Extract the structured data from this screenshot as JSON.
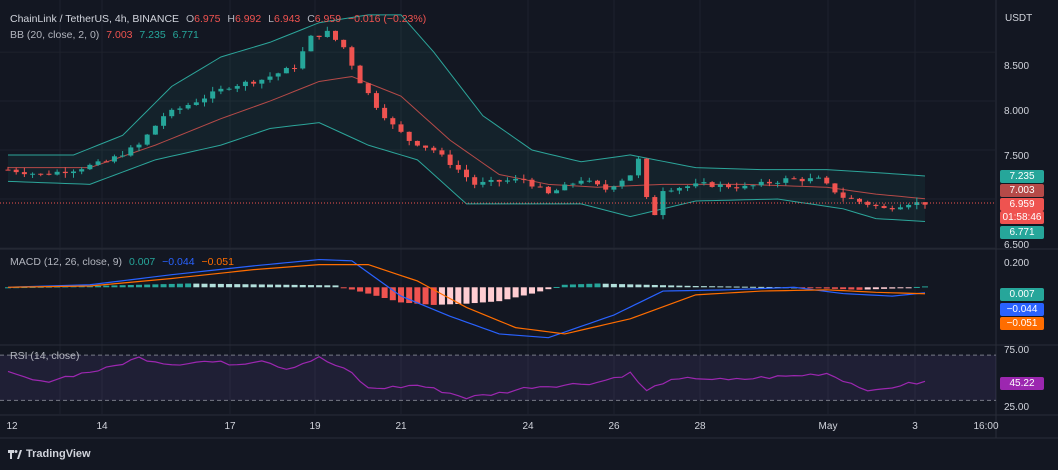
{
  "header": {
    "symbol": "ChainLink / TetherUS, 4h, BINANCE",
    "o_label": "O",
    "o": "6.975",
    "h_label": "H",
    "h": "6.992",
    "l_label": "L",
    "l": "6.943",
    "c_label": "C",
    "c": "6.959",
    "change": "−0.016 (−0.23%)",
    "bb_label": "BB (20, close, 2, 0)",
    "bb_basis": "7.003",
    "bb_upper": "7.235",
    "bb_lower": "6.771",
    "macd_label": "MACD (12, 26, close, 9)",
    "macd_hist": "0.007",
    "macd_line": "−0.044",
    "macd_signal": "−0.051",
    "rsi_label": "RSI (14, close)"
  },
  "axis": {
    "currency": "USDT",
    "price_ticks": [
      "8.500",
      "8.000",
      "7.500",
      "6.500"
    ],
    "macd_ticks": [
      "0.200"
    ],
    "rsi_ticks": [
      "75.00",
      "25.00"
    ],
    "x_ticks": [
      "12",
      "14",
      "17",
      "19",
      "21",
      "24",
      "26",
      "28",
      "May",
      "3",
      "16:00"
    ]
  },
  "pills": {
    "bb_upper": "7.235",
    "bb_basis": "7.003",
    "last_price": "6.959",
    "countdown": "01:58:46",
    "bb_lower": "6.771",
    "macd_hist": "0.007",
    "macd_line": "−0.044",
    "macd_signal": "−0.051",
    "rsi": "45.22"
  },
  "footer": {
    "brand": "TradingView"
  },
  "colors": {
    "up": "#26a69a",
    "down": "#ef5350",
    "bb_band": "#2ca59a",
    "bb_basis": "#b54a48",
    "macd_line": "#2962ff",
    "signal_line": "#ff6d00",
    "rsi": "#9c27b0",
    "bg": "#131722"
  },
  "chart_data": [
    {
      "type": "candlestick",
      "title": "ChainLink / TetherUS, 4h, BINANCE",
      "ylim": [
        6.5,
        8.95
      ],
      "price_points": [
        [
          0,
          7.3
        ],
        [
          4,
          7.25
        ],
        [
          8,
          7.3
        ],
        [
          12,
          7.38
        ],
        [
          16,
          7.55
        ],
        [
          19,
          7.85
        ],
        [
          23,
          8.0
        ],
        [
          27,
          8.15
        ],
        [
          31,
          8.22
        ],
        [
          35,
          8.35
        ],
        [
          37,
          8.65
        ],
        [
          39,
          8.7
        ],
        [
          41,
          8.55
        ],
        [
          43,
          8.2
        ],
        [
          45,
          7.95
        ],
        [
          47,
          7.75
        ],
        [
          49,
          7.6
        ],
        [
          52,
          7.5
        ],
        [
          55,
          7.3
        ],
        [
          57,
          7.15
        ],
        [
          60,
          7.18
        ],
        [
          63,
          7.2
        ],
        [
          66,
          7.05
        ],
        [
          70,
          7.2
        ],
        [
          73,
          7.1
        ],
        [
          76,
          7.25
        ],
        [
          77,
          7.4
        ],
        [
          78,
          7.0
        ],
        [
          79,
          6.85
        ],
        [
          80,
          7.1
        ],
        [
          85,
          7.15
        ],
        [
          90,
          7.12
        ],
        [
          95,
          7.2
        ],
        [
          99,
          7.2
        ],
        [
          102,
          7.02
        ],
        [
          105,
          6.95
        ],
        [
          107,
          6.9
        ],
        [
          110,
          6.96
        ],
        [
          112,
          6.959
        ]
      ],
      "bb_upper_points": [
        [
          0,
          7.45
        ],
        [
          8,
          7.45
        ],
        [
          14,
          7.65
        ],
        [
          20,
          8.15
        ],
        [
          26,
          8.45
        ],
        [
          32,
          8.6
        ],
        [
          38,
          8.8
        ],
        [
          44,
          8.88
        ],
        [
          48,
          8.88
        ],
        [
          52,
          8.5
        ],
        [
          58,
          7.85
        ],
        [
          64,
          7.5
        ],
        [
          70,
          7.38
        ],
        [
          76,
          7.45
        ],
        [
          84,
          7.32
        ],
        [
          92,
          7.3
        ],
        [
          100,
          7.3
        ],
        [
          106,
          7.27
        ],
        [
          112,
          7.235
        ]
      ],
      "bb_basis_points": [
        [
          0,
          7.32
        ],
        [
          10,
          7.32
        ],
        [
          18,
          7.55
        ],
        [
          26,
          7.82
        ],
        [
          32,
          8.0
        ],
        [
          38,
          8.2
        ],
        [
          42,
          8.25
        ],
        [
          48,
          8.05
        ],
        [
          54,
          7.6
        ],
        [
          60,
          7.25
        ],
        [
          66,
          7.15
        ],
        [
          72,
          7.12
        ],
        [
          80,
          7.15
        ],
        [
          90,
          7.15
        ],
        [
          100,
          7.12
        ],
        [
          106,
          7.05
        ],
        [
          112,
          7.003
        ]
      ],
      "bb_lower_points": [
        [
          0,
          7.18
        ],
        [
          10,
          7.15
        ],
        [
          18,
          7.4
        ],
        [
          26,
          7.55
        ],
        [
          32,
          7.72
        ],
        [
          38,
          7.78
        ],
        [
          44,
          7.55
        ],
        [
          50,
          7.4
        ],
        [
          56,
          6.95
        ],
        [
          62,
          6.95
        ],
        [
          70,
          6.95
        ],
        [
          76,
          6.82
        ],
        [
          84,
          6.98
        ],
        [
          94,
          7.0
        ],
        [
          102,
          6.9
        ],
        [
          106,
          6.8
        ],
        [
          112,
          6.771
        ]
      ],
      "last_price": 6.959
    },
    {
      "type": "bar",
      "title": "MACD (12, 26, close, 9)",
      "ylim": [
        -0.45,
        0.28
      ],
      "hist_points": [
        [
          0,
          0.0
        ],
        [
          10,
          0.01
        ],
        [
          16,
          0.02
        ],
        [
          22,
          0.03
        ],
        [
          28,
          0.025
        ],
        [
          34,
          0.02
        ],
        [
          40,
          0.015
        ],
        [
          44,
          -0.05
        ],
        [
          48,
          -0.12
        ],
        [
          52,
          -0.14
        ],
        [
          56,
          -0.13
        ],
        [
          60,
          -0.11
        ],
        [
          64,
          -0.05
        ],
        [
          68,
          0.02
        ],
        [
          72,
          0.03
        ],
        [
          78,
          0.02
        ],
        [
          84,
          0.01
        ],
        [
          90,
          0.005
        ],
        [
          96,
          0.0
        ],
        [
          100,
          -0.01
        ],
        [
          104,
          -0.02
        ],
        [
          108,
          -0.01
        ],
        [
          112,
          0.007
        ]
      ],
      "macd_line_points": [
        [
          0,
          0.0
        ],
        [
          10,
          0.02
        ],
        [
          20,
          0.1
        ],
        [
          30,
          0.17
        ],
        [
          38,
          0.22
        ],
        [
          42,
          0.21
        ],
        [
          48,
          -0.07
        ],
        [
          54,
          -0.23
        ],
        [
          60,
          -0.37
        ],
        [
          66,
          -0.4
        ],
        [
          74,
          -0.22
        ],
        [
          80,
          -0.03
        ],
        [
          88,
          -0.02
        ],
        [
          96,
          0.0
        ],
        [
          102,
          -0.05
        ],
        [
          108,
          -0.07
        ],
        [
          112,
          -0.044
        ]
      ],
      "signal_line_points": [
        [
          0,
          0.0
        ],
        [
          10,
          0.01
        ],
        [
          20,
          0.07
        ],
        [
          30,
          0.14
        ],
        [
          38,
          0.18
        ],
        [
          44,
          0.18
        ],
        [
          50,
          0.05
        ],
        [
          56,
          -0.16
        ],
        [
          62,
          -0.32
        ],
        [
          68,
          -0.37
        ],
        [
          76,
          -0.25
        ],
        [
          84,
          -0.06
        ],
        [
          92,
          -0.03
        ],
        [
          100,
          -0.02
        ],
        [
          106,
          -0.04
        ],
        [
          112,
          -0.051
        ]
      ]
    },
    {
      "type": "line",
      "title": "RSI (14, close)",
      "ylim": [
        10,
        85
      ],
      "rsi_points": [
        [
          0,
          55
        ],
        [
          4,
          45
        ],
        [
          8,
          53
        ],
        [
          12,
          60
        ],
        [
          16,
          72
        ],
        [
          20,
          65
        ],
        [
          24,
          68
        ],
        [
          28,
          65
        ],
        [
          31,
          70
        ],
        [
          34,
          60
        ],
        [
          38,
          72
        ],
        [
          42,
          55
        ],
        [
          44,
          38
        ],
        [
          48,
          40
        ],
        [
          50,
          42
        ],
        [
          54,
          33
        ],
        [
          56,
          28
        ],
        [
          60,
          33
        ],
        [
          64,
          40
        ],
        [
          68,
          42
        ],
        [
          72,
          45
        ],
        [
          76,
          55
        ],
        [
          78,
          35
        ],
        [
          80,
          45
        ],
        [
          84,
          50
        ],
        [
          88,
          47
        ],
        [
          92,
          50
        ],
        [
          96,
          52
        ],
        [
          100,
          55
        ],
        [
          104,
          40
        ],
        [
          106,
          35
        ],
        [
          109,
          42
        ],
        [
          112,
          45.22
        ]
      ],
      "levels": [
        75,
        25
      ]
    }
  ]
}
